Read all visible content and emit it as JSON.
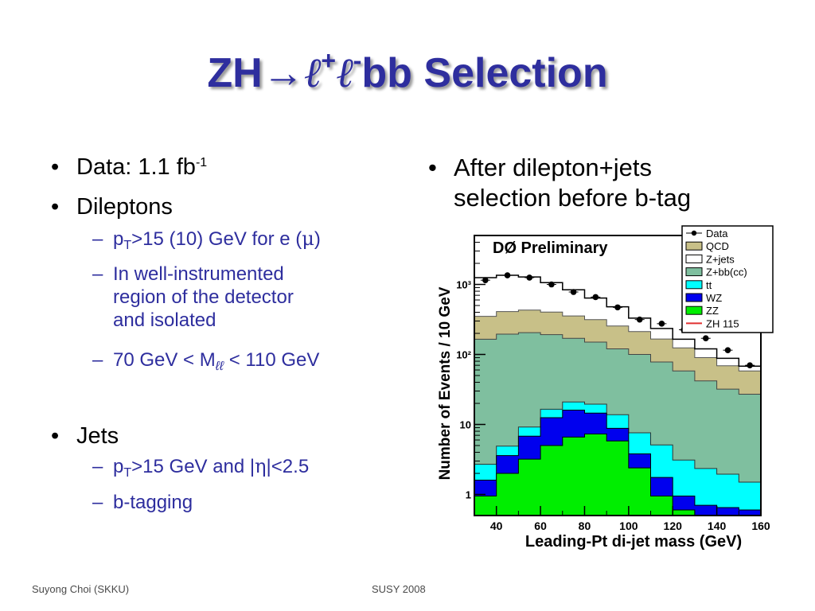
{
  "slide": {
    "title": {
      "part1": "ZH",
      "arrow": "→",
      "ell": "ℓ",
      "plus": "+",
      "minus": "-",
      "part2": "bb Selection"
    },
    "left": {
      "data_prefix": "Data: 1.1 fb",
      "data_exp": "-1",
      "dileptons": "Dileptons",
      "pt_sub1": "T",
      "pt_lep_text": ">15 (10) GeV for e (",
      "mu": "μ",
      "close_paren": ")",
      "region_l1": "In well-instrumented",
      "region_l2": "region of the detector",
      "region_l3": "and isolated",
      "mll_pre": "70 GeV < M",
      "mll_sub": "ℓℓ",
      "mll_post": " < 110 GeV",
      "jets": "Jets",
      "pt_sub2": "T",
      "pt_jet_text": ">15 GeV and |",
      "eta": "η",
      "eta_post": "|<2.5",
      "btag": "b-tagging",
      "p": "p"
    },
    "right": {
      "line1": "After dilepton+jets",
      "line2": "selection before b-tag"
    },
    "footer": {
      "left": "Suyong Choi (SKKU)",
      "center": "SUSY 2008"
    },
    "bullet": "•",
    "dash": "–"
  },
  "chart_data": {
    "type": "area",
    "title": "DØ Preliminary",
    "xlabel": "Leading-Pt di-jet mass (GeV)",
    "ylabel": "Number of Events / 10 GeV",
    "xlim": [
      30,
      160
    ],
    "ylim": [
      0.5,
      5000
    ],
    "yscale": "log",
    "x_ticks": [
      40,
      60,
      80,
      100,
      120,
      140,
      160
    ],
    "y_ticks": [
      {
        "value": 1,
        "label": "1"
      },
      {
        "value": 10,
        "label": "10"
      },
      {
        "value": 100,
        "label": "10²"
      },
      {
        "value": 1000,
        "label": "10³"
      }
    ],
    "bin_edges": [
      30,
      40,
      50,
      60,
      70,
      80,
      90,
      100,
      110,
      120,
      130,
      140,
      150,
      160
    ],
    "series": [
      {
        "name": "ZZ",
        "color": "#00ee00",
        "values": [
          0.95,
          2.0,
          3.2,
          5.0,
          6.6,
          7.3,
          5.8,
          2.4,
          0.95,
          0.6,
          0.5,
          0.5,
          0.5
        ]
      },
      {
        "name": "WZ",
        "color": "#0000ee",
        "values": [
          1.6,
          3.6,
          6.8,
          12.5,
          16.0,
          14.5,
          8.8,
          3.8,
          1.75,
          0.95,
          0.7,
          0.65,
          0.6
        ]
      },
      {
        "name": "tt",
        "color": "#00ffff",
        "values": [
          2.7,
          4.9,
          9.2,
          16.5,
          21.0,
          19.5,
          13.8,
          7.6,
          5.1,
          3.1,
          2.35,
          1.95,
          1.5
        ]
      },
      {
        "name": "Z+bb(cc)",
        "color": "#7fbf9f",
        "values": [
          165,
          195,
          205,
          192,
          170,
          150,
          120,
          100,
          78,
          58,
          42,
          32,
          27
        ]
      },
      {
        "name": "Z+jets",
        "color": "#ffffff",
        "values": [
          1250,
          1350,
          1280,
          1060,
          840,
          640,
          480,
          330,
          235,
          165,
          120,
          88,
          68
        ]
      },
      {
        "name": "QCD",
        "color": "#c8c088",
        "values": [
          185,
          215,
          225,
          210,
          185,
          165,
          135,
          112,
          88,
          66,
          48,
          37,
          31
        ]
      },
      {
        "name": "ZH 115",
        "color": "#e03030",
        "values": []
      }
    ],
    "data_points": {
      "name": "Data",
      "x": [
        35,
        45,
        55,
        65,
        75,
        85,
        95,
        105,
        115,
        125,
        135,
        145,
        155
      ],
      "y": [
        1150,
        1350,
        1250,
        1000,
        780,
        660,
        470,
        315,
        275,
        225,
        170,
        115,
        70
      ]
    },
    "legend": [
      "Data",
      "QCD",
      "Z+jets",
      "Z+bb(cc)",
      "tt",
      "WZ",
      "ZZ",
      "ZH 115"
    ],
    "legend_position": "top-right"
  }
}
